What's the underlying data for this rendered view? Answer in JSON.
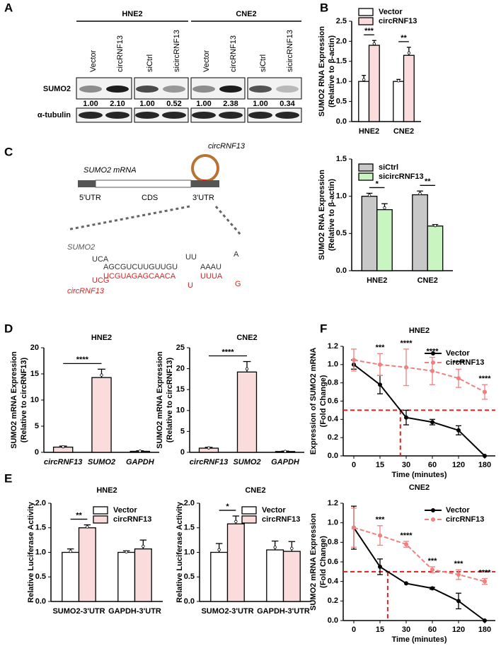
{
  "panel_labels": [
    "A",
    "B",
    "C",
    "D",
    "E",
    "F"
  ],
  "blot": {
    "groups": [
      "HNE2",
      "CNE2"
    ],
    "lanes": [
      "Vector",
      "circRNF13",
      "siCtrl",
      "sicircRNF13",
      "Vector",
      "circRNF13",
      "siCtrl",
      "sicircRNF13"
    ],
    "rows": [
      "SUMO2",
      "α-tubulin"
    ],
    "quantification": [
      "1.00",
      "2.10",
      "1.00",
      "0.52",
      "1.00",
      "2.38",
      "1.00",
      "0.34"
    ]
  },
  "diagram": {
    "circ_label": "circRNF13",
    "mrna_label": "SUMO2 mRNA",
    "regions": [
      "5'UTR",
      "CDS",
      "3'UTR"
    ],
    "sumo2_label": "SUMO2",
    "sumo2_seq": [
      "UCA",
      "AGCGUCUUGUUGU",
      "UU",
      "AAAU",
      "A"
    ],
    "circ_seq": [
      "UCG",
      "UCGUAGAGCAACA",
      "U",
      "UUUA",
      "G"
    ],
    "circ_seq_label": "circRNF13"
  },
  "chart_data": [
    {
      "type": "bar",
      "categories": [
        "HNE2",
        "CNE2"
      ],
      "series": [
        {
          "name": "Vector",
          "color": "#ffffff",
          "values": [
            1.0,
            1.0
          ],
          "errors": [
            0.15,
            0.05
          ]
        },
        {
          "name": "circRNF13",
          "color": "#fadcdc",
          "values": [
            1.9,
            1.65
          ],
          "errors": [
            0.12,
            0.2
          ]
        }
      ],
      "ylabel": [
        "SUMO2 RNA Expression",
        "(Relative to β-actin)"
      ],
      "ylim": [
        0,
        2.5
      ],
      "yticks": [
        {
          "value": 0,
          "label": "0.0"
        },
        0.5,
        {
          "value": 1,
          "label": "1.0"
        },
        1.5,
        {
          "value": 2,
          "label": "2.0"
        },
        2.5
      ],
      "legend": "upper left",
      "annotations": [
        "***",
        "**"
      ]
    },
    {
      "type": "bar",
      "categories": [
        "HNE2",
        "CNE2"
      ],
      "series": [
        {
          "name": "siCtrl",
          "color": "#c8c8c8",
          "values": [
            1.0,
            1.02
          ],
          "errors": [
            0.04,
            0.05
          ]
        },
        {
          "name": "sicircRNF13",
          "color": "#c8f5c0",
          "values": [
            0.82,
            0.6
          ],
          "errors": [
            0.08,
            0.02
          ]
        }
      ],
      "ylabel": [
        "SUMO2 RNA Expression",
        "(Relative to β-actin)"
      ],
      "ylim": [
        0,
        1.5
      ],
      "yticks": [
        {
          "value": 0,
          "label": "0.0"
        },
        0.5,
        {
          "value": 1,
          "label": "1.0"
        },
        1.5
      ],
      "legend": "upper left",
      "annotations": [
        "*",
        "**"
      ]
    },
    {
      "type": "bar",
      "title": "HNE2",
      "categories": [
        "circRNF13",
        "SUMO2",
        "GAPDH"
      ],
      "values": [
        1,
        14.3,
        0.2
      ],
      "errors": [
        0.2,
        1.6,
        0.1
      ],
      "color": "#fadcdc",
      "ylabel": [
        "SUMO2 mRNA Expression",
        "(Relative to circRNF13)"
      ],
      "ylim": [
        0,
        20
      ],
      "yticks": [
        0,
        5,
        10,
        15,
        20
      ],
      "annotations": [
        "****"
      ]
    },
    {
      "type": "bar",
      "title": "CNE2",
      "categories": [
        "circRNF13",
        "SUMO2",
        "GAPDH"
      ],
      "values": [
        1,
        19.2,
        0.2
      ],
      "errors": [
        0.2,
        2.5,
        0.1
      ],
      "color": "#fadcdc",
      "ylabel": [
        "SUMO2 mRNA Expression",
        "(Relative to circRNF13)"
      ],
      "ylim": [
        0,
        25
      ],
      "yticks": [
        0,
        5,
        10,
        15,
        20,
        25
      ],
      "annotations": [
        "****"
      ]
    },
    {
      "type": "bar",
      "title": "HNE2",
      "categories": [
        "SUMO2-3'UTR",
        "GAPDH-3'UTR"
      ],
      "series": [
        {
          "name": "Vector",
          "color": "#ffffff",
          "values": [
            1.0,
            1.0
          ],
          "errors": [
            0.07,
            0.03
          ]
        },
        {
          "name": "circRNF13",
          "color": "#fadcdc",
          "values": [
            1.5,
            1.07
          ],
          "errors": [
            0.06,
            0.18
          ]
        }
      ],
      "ylabel": [
        "Relative Luciferase Activity"
      ],
      "ylim": [
        0,
        2
      ],
      "yticks": [
        {
          "value": 0,
          "label": "0.0"
        },
        0.5,
        {
          "value": 1,
          "label": "1.0"
        },
        1.5,
        {
          "value": 2,
          "label": "2.0"
        }
      ],
      "legend": "upper right",
      "annotations": [
        "**"
      ]
    },
    {
      "type": "bar",
      "title": "CNE2",
      "categories": [
        "SUMO2-3'UTR",
        "GAPDH-3'UTR"
      ],
      "series": [
        {
          "name": "Vector",
          "color": "#ffffff",
          "values": [
            1.0,
            1.05
          ],
          "errors": [
            0.18,
            0.18
          ]
        },
        {
          "name": "circRNF13",
          "color": "#fadcdc",
          "values": [
            1.58,
            1.02
          ],
          "errors": [
            0.16,
            0.2
          ]
        }
      ],
      "ylabel": [
        "Relative Luciferase Activity"
      ],
      "ylim": [
        0,
        2
      ],
      "yticks": [
        {
          "value": 0,
          "label": "0.0"
        },
        0.5,
        {
          "value": 1,
          "label": "1.0"
        },
        1.5,
        {
          "value": 2,
          "label": "2.0"
        }
      ],
      "legend": "upper right",
      "annotations": [
        "*"
      ]
    },
    {
      "type": "line",
      "title": "HNE2",
      "categories": [
        "0",
        "15",
        "30",
        "60",
        "120",
        "180"
      ],
      "series": [
        {
          "name": "Vector",
          "color": "#000000",
          "linestyle": "solid",
          "values": [
            1.0,
            0.78,
            0.42,
            0.37,
            0.28,
            0
          ],
          "errors": [
            0.05,
            0.1,
            0.08,
            0.03,
            0.05,
            0
          ]
        },
        {
          "name": "circRNF13",
          "color": "#f08080",
          "linestyle": "dashed",
          "values": [
            1.05,
            1.0,
            0.97,
            0.93,
            0.85,
            0.7
          ],
          "errors": [
            0.12,
            0.12,
            0.2,
            0.15,
            0.1,
            0.08
          ]
        }
      ],
      "xlabel": "Time (minutes)",
      "ylabel": [
        "Expression of SUMO2 mRNA",
        "(Fold Change)"
      ],
      "ylim": [
        0,
        1.2
      ],
      "yticks": [
        {
          "value": 0,
          "label": "0.0"
        },
        0.2,
        0.4,
        0.6,
        0.8,
        {
          "value": 1,
          "label": "1.0"
        },
        1.2
      ],
      "legend": "upper right",
      "annotations": [
        "***",
        "****",
        "****",
        "****",
        "****"
      ],
      "hline": 0.5,
      "hline_color": "#e02020"
    },
    {
      "type": "line",
      "title": "CNE2",
      "categories": [
        "0",
        "15",
        "30",
        "60",
        "120",
        "180"
      ],
      "series": [
        {
          "name": "Vector",
          "color": "#000000",
          "linestyle": "solid",
          "values": [
            0.95,
            0.55,
            0.38,
            0.33,
            0.2,
            0
          ],
          "errors": [
            0.22,
            0.08,
            0,
            0.01,
            0.08,
            0
          ]
        },
        {
          "name": "circRNF13",
          "color": "#f08080",
          "linestyle": "dashed",
          "values": [
            0.95,
            0.87,
            0.78,
            0.52,
            0.47,
            0.4
          ],
          "errors": [
            0.2,
            0.1,
            0.03,
            0.03,
            0.05,
            0.03
          ]
        }
      ],
      "xlabel": "Time (minutes)",
      "ylabel": [
        "SUMO2 mRNA Expression",
        "(Fold Change)"
      ],
      "ylim": [
        0,
        1.2
      ],
      "yticks": [
        {
          "value": 0,
          "label": "0.0"
        },
        0.2,
        0.4,
        0.6,
        0.8,
        {
          "value": 1,
          "label": "1.0"
        },
        1.2
      ],
      "legend": "upper right",
      "annotations": [
        "***",
        "****",
        "***",
        "***",
        "****"
      ],
      "hline": 0.5,
      "hline_color": "#e02020"
    }
  ]
}
